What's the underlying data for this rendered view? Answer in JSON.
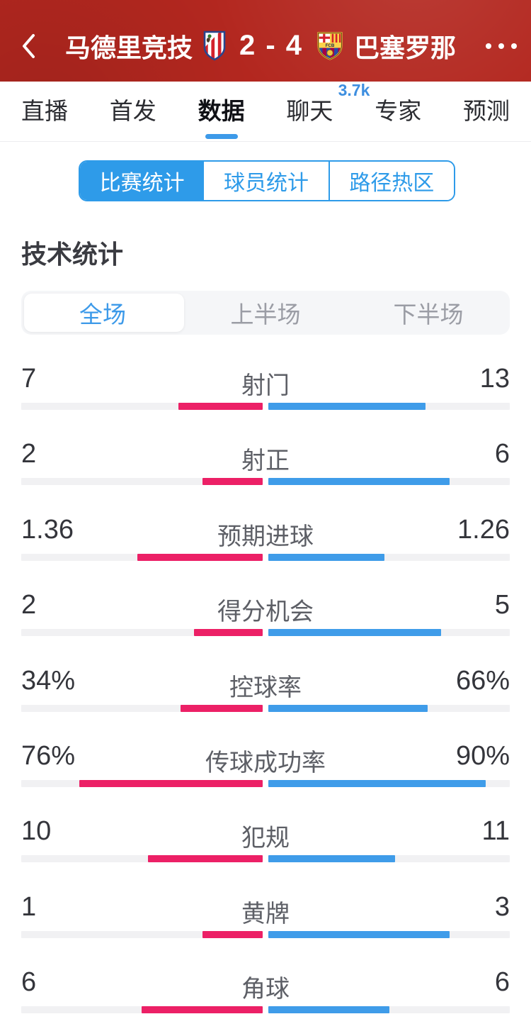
{
  "header": {
    "back_icon": "chevron-left",
    "home_team": "马德里竞技",
    "away_team": "巴塞罗那",
    "score": "2 - 4",
    "home_crest": "atletico-madrid-crest",
    "away_crest": "barcelona-crest",
    "more_icon": "ellipsis"
  },
  "tabs": [
    {
      "label": "直播",
      "active": false
    },
    {
      "label": "首发",
      "active": false
    },
    {
      "label": "数据",
      "active": true
    },
    {
      "label": "聊天",
      "active": false,
      "badge": "3.7k"
    },
    {
      "label": "专家",
      "active": false
    },
    {
      "label": "预测",
      "active": false
    }
  ],
  "sub_tabs": [
    {
      "label": "比赛统计",
      "active": true
    },
    {
      "label": "球员统计",
      "active": false
    },
    {
      "label": "路径热区",
      "active": false
    }
  ],
  "section_title": "技术统计",
  "period_tabs": [
    {
      "label": "全场",
      "active": true
    },
    {
      "label": "上半场",
      "active": false
    },
    {
      "label": "下半场",
      "active": false
    }
  ],
  "chart_data": {
    "type": "bar",
    "orientation": "horizontal-paired",
    "title": "技术统计",
    "series": [
      {
        "name": "马德里竞技",
        "color": "#ec2066",
        "side": "left"
      },
      {
        "name": "巴塞罗那",
        "color": "#3f9ce9",
        "side": "right"
      }
    ],
    "normalization": "percent values scaled to /100, counts scaled to value/(home+away)",
    "rows": [
      {
        "label": "射门",
        "home": "7",
        "away": "13"
      },
      {
        "label": "射正",
        "home": "2",
        "away": "6"
      },
      {
        "label": "预期进球",
        "home": "1.36",
        "away": "1.26"
      },
      {
        "label": "得分机会",
        "home": "2",
        "away": "5"
      },
      {
        "label": "控球率",
        "home": "34%",
        "away": "66%"
      },
      {
        "label": "传球成功率",
        "home": "76%",
        "away": "90%"
      },
      {
        "label": "犯规",
        "home": "10",
        "away": "11"
      },
      {
        "label": "黄牌",
        "home": "1",
        "away": "3"
      },
      {
        "label": "角球",
        "home": "6",
        "away": "6"
      }
    ]
  },
  "colors": {
    "header_red": "#b3271f",
    "accent_blue": "#2e9be9",
    "bar_blue": "#3f9ce9",
    "bar_pink": "#ec2066",
    "track_gray": "#f1f1f3",
    "badge_blue": "#3e8fe0",
    "text_dark": "#34353b",
    "text_gray": "#5d5f66",
    "inactive_gray": "#9b9da5"
  }
}
